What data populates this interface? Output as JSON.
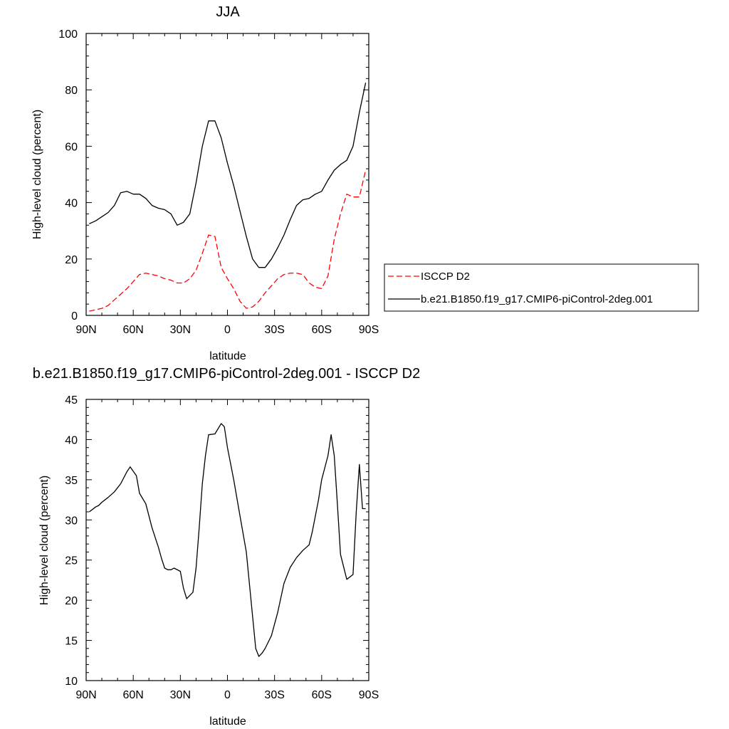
{
  "chart_data": [
    {
      "type": "line",
      "title": "JJA",
      "xlabel": "latitude",
      "ylabel": "High-level cloud (percent)",
      "xlim": [
        90,
        -90
      ],
      "ylim": [
        0,
        100
      ],
      "x_ticks": [
        90,
        60,
        30,
        0,
        -30,
        -60,
        -90
      ],
      "x_tick_labels": [
        "90N",
        "60N",
        "30N",
        "0",
        "30S",
        "60S",
        "90S"
      ],
      "y_ticks": [
        0,
        20,
        40,
        60,
        80,
        100
      ],
      "y_tick_labels": [
        "0",
        "20",
        "40",
        "60",
        "80",
        "100"
      ],
      "legend": "outside-right",
      "series": [
        {
          "name": "ISCCP D2",
          "color": "#ff0000",
          "dash": "dashed",
          "x": [
            88,
            84,
            80,
            76,
            72,
            68,
            64,
            60,
            56,
            52,
            48,
            44,
            40,
            36,
            32,
            28,
            24,
            20,
            16,
            12,
            8,
            4,
            0,
            -4,
            -8,
            -12,
            -16,
            -20,
            -24,
            -28,
            -32,
            -36,
            -40,
            -44,
            -48,
            -52,
            -56,
            -60,
            -64,
            -68,
            -72,
            -76,
            -80,
            -84,
            -88
          ],
          "y": [
            1.5,
            2,
            2.5,
            3.5,
            5.5,
            7.5,
            9.5,
            12,
            14.5,
            15,
            14.5,
            14,
            13,
            12.5,
            11.5,
            11.5,
            13,
            16,
            22,
            28.5,
            28,
            17,
            13,
            9.5,
            5,
            2.5,
            3,
            5,
            8,
            10.5,
            13,
            14.5,
            15,
            15,
            14.5,
            11.5,
            10,
            9.5,
            14,
            27,
            36,
            43,
            42,
            42,
            51.5
          ]
        },
        {
          "name": "b.e21.B1850.f19_g17.CMIP6-piControl-2deg.001",
          "color": "#000000",
          "dash": "solid",
          "x": [
            88,
            84,
            80,
            76,
            72,
            68,
            64,
            60,
            56,
            52,
            48,
            44,
            40,
            36,
            32,
            28,
            24,
            20,
            16,
            12,
            8,
            4,
            0,
            -4,
            -8,
            -12,
            -16,
            -20,
            -24,
            -28,
            -32,
            -36,
            -40,
            -44,
            -48,
            -52,
            -56,
            -60,
            -64,
            -68,
            -72,
            -76,
            -80,
            -84,
            -88
          ],
          "y": [
            32.5,
            33.5,
            35,
            36.5,
            39,
            43.5,
            44,
            43,
            43,
            41.5,
            39,
            38,
            37.5,
            36,
            32,
            33,
            36,
            47,
            60,
            69,
            69,
            63,
            54,
            46,
            37,
            28,
            20,
            17,
            17,
            20,
            24,
            28.5,
            34,
            39,
            41,
            41.5,
            43,
            44,
            48,
            51.5,
            53.5,
            55,
            60,
            72,
            82.5
          ]
        }
      ]
    },
    {
      "type": "line",
      "title": "b.e21.B1850.f19_g17.CMIP6-piControl-2deg.001 - ISCCP D2",
      "xlabel": "latitude",
      "ylabel": "High-level cloud (percent)",
      "xlim": [
        90,
        -90
      ],
      "ylim": [
        10,
        45
      ],
      "x_ticks": [
        90,
        60,
        30,
        0,
        -30,
        -60,
        -90
      ],
      "x_tick_labels": [
        "90N",
        "60N",
        "30N",
        "0",
        "30S",
        "60S",
        "90S"
      ],
      "y_ticks": [
        10,
        15,
        20,
        25,
        30,
        35,
        40,
        45
      ],
      "y_tick_labels": [
        "10",
        "15",
        "20",
        "25",
        "30",
        "35",
        "40",
        "45"
      ],
      "series": [
        {
          "color": "#000000",
          "dash": "solid",
          "x": [
            88,
            84,
            82,
            80,
            76,
            72,
            68,
            64,
            62,
            58,
            56,
            52,
            48,
            44,
            42,
            40,
            38,
            36,
            34,
            30,
            28,
            26,
            22,
            20,
            18,
            16,
            14,
            12,
            8,
            4,
            2,
            0,
            -4,
            -8,
            -12,
            -16,
            -18,
            -20,
            -22,
            -24,
            -28,
            -32,
            -36,
            -40,
            -44,
            -48,
            -52,
            -54,
            -58,
            -60,
            -64,
            -66,
            -68,
            -70,
            -72,
            -76,
            -80,
            -82,
            -84,
            -86,
            -88
          ],
          "y": [
            31,
            31.6,
            31.8,
            32.2,
            32.8,
            33.5,
            34.5,
            36,
            36.6,
            35.5,
            33.3,
            32,
            29,
            26.6,
            25.2,
            24,
            23.8,
            23.8,
            24,
            23.6,
            21.5,
            20.2,
            21,
            24,
            29,
            34.5,
            38,
            40.6,
            40.7,
            42,
            41.6,
            39,
            35,
            30.5,
            26,
            18,
            14,
            13,
            13.4,
            14,
            15.6,
            18.5,
            22.1,
            24.1,
            25.3,
            26.2,
            26.9,
            28.5,
            32.5,
            35,
            38,
            40.6,
            38,
            32,
            25.7,
            22.6,
            23.2,
            31,
            36.9,
            31.4,
            31.4
          ]
        }
      ]
    }
  ]
}
